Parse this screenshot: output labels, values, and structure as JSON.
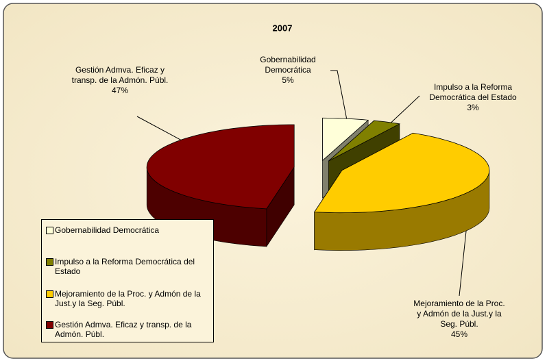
{
  "chart_data": {
    "type": "pie",
    "title": "2007",
    "categories": [
      "Gobernabilidad Democrática",
      "Impulso a la Reforma Democrática del Estado",
      "Mejoramiento de la Proc. y Admón de la Just.y la Seg. Públ.",
      "Gestión Admva. Eficaz y transp. de la Admón. Públ."
    ],
    "values": [
      5,
      3,
      45,
      47
    ],
    "value_labels": [
      "5%",
      "3%",
      "45%",
      "47%"
    ],
    "colors": [
      "#ffffd9",
      "#808000",
      "#ffcc00",
      "#800000"
    ],
    "legend": "bottom-left"
  }
}
